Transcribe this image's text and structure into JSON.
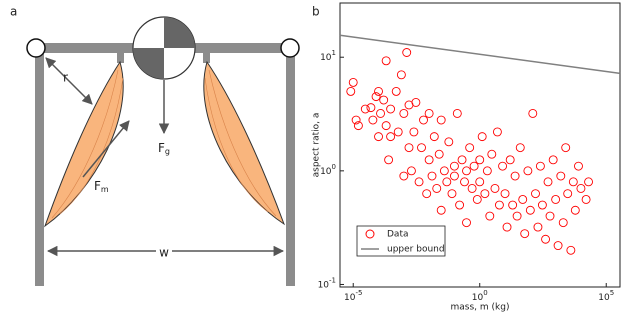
{
  "diagram": {
    "panel_label": "a",
    "labels": {
      "r": {
        "text": "r"
      },
      "fm": {
        "text": "F",
        "sub": "m"
      },
      "fg": {
        "text": "F",
        "sub": "g"
      },
      "w": {
        "text": "w"
      }
    }
  },
  "chart_data": {
    "type": "scatter",
    "panel_label": "b",
    "xlabel": "mass, m (kg)",
    "ylabel": "aspect ratio, a",
    "xscale": "log",
    "yscale": "log",
    "xlim": [
      3e-06,
      350000.0
    ],
    "ylim": [
      0.095,
      30
    ],
    "xticks": [
      {
        "value": 1e-05,
        "label": "10",
        "exponent": "-5"
      },
      {
        "value": 1,
        "label": "10",
        "exponent": "0"
      },
      {
        "value": 100000.0,
        "label": "10",
        "exponent": "5"
      }
    ],
    "yticks": [
      {
        "value": 0.1,
        "label": "10",
        "exponent": "-1"
      },
      {
        "value": 1,
        "label": "10",
        "exponent": "0"
      },
      {
        "value": 10,
        "label": "10",
        "exponent": "1"
      }
    ],
    "legend": "lower left",
    "series": [
      {
        "name": "Data",
        "color": "#ff0000",
        "marker": "circle",
        "x": [
          8e-06,
          1e-05,
          1.3e-05,
          1.6e-05,
          3e-05,
          5e-05,
          6e-05,
          8e-05,
          0.0001,
          0.0001,
          0.00012,
          0.00016,
          0.0002,
          0.0002,
          0.00025,
          0.0003,
          0.0003,
          0.0005,
          0.0006,
          0.0008,
          0.001,
          0.001,
          0.0013,
          0.0016,
          0.0016,
          0.002,
          0.0025,
          0.003,
          0.004,
          0.005,
          0.006,
          0.008,
          0.01,
          0.01,
          0.013,
          0.016,
          0.02,
          0.025,
          0.03,
          0.03,
          0.04,
          0.05,
          0.06,
          0.08,
          0.1,
          0.1,
          0.13,
          0.16,
          0.2,
          0.25,
          0.3,
          0.3,
          0.4,
          0.5,
          0.6,
          0.8,
          1,
          1,
          1.25,
          1.6,
          2,
          2.5,
          3,
          4,
          5,
          6,
          8,
          10,
          12,
          16,
          20,
          25,
          30,
          40,
          50,
          60,
          80,
          100,
          125,
          160,
          200,
          250,
          300,
          400,
          500,
          600,
          800,
          1000,
          1250,
          1600,
          2000,
          2500,
          3000,
          4000,
          5000,
          6000,
          8000,
          10000,
          16000,
          20000
        ],
        "values": [
          5,
          6,
          2.8,
          2.5,
          3.5,
          3.6,
          2.8,
          4.5,
          5,
          2,
          3.2,
          4.2,
          9.3,
          2.5,
          1.25,
          3.5,
          2,
          5,
          2.2,
          7,
          3.2,
          0.9,
          11,
          3.8,
          1.6,
          1,
          2.2,
          4,
          0.8,
          1.6,
          2.8,
          0.63,
          1.25,
          3.2,
          0.9,
          2,
          0.7,
          1.4,
          0.45,
          2.8,
          1,
          0.8,
          1.8,
          0.63,
          1.1,
          0.9,
          3.2,
          0.5,
          1.25,
          0.8,
          1,
          0.35,
          1.6,
          0.7,
          1.1,
          0.56,
          1.25,
          0.8,
          2,
          0.63,
          1,
          0.4,
          1.4,
          0.7,
          2.2,
          0.5,
          1.1,
          0.63,
          0.32,
          1.25,
          0.5,
          0.9,
          0.4,
          1.6,
          0.56,
          0.28,
          1,
          0.45,
          3.2,
          0.63,
          0.32,
          1.1,
          0.5,
          0.25,
          0.8,
          0.4,
          1.25,
          0.56,
          0.22,
          0.9,
          0.35,
          1.6,
          0.63,
          0.2,
          0.8,
          0.45,
          1.1,
          0.7,
          0.56,
          0.8
        ]
      },
      {
        "name": "upper bound",
        "color": "#808080",
        "type": "line",
        "x": [
          3e-06,
          350000.0
        ],
        "values": [
          15.6,
          7.2
        ]
      }
    ]
  }
}
